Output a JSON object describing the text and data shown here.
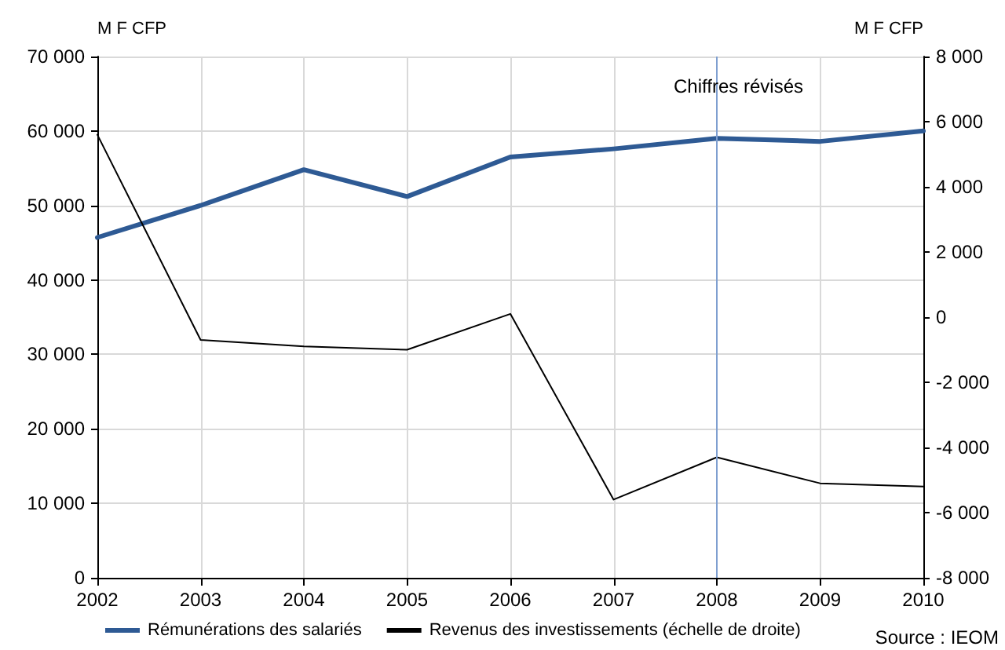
{
  "chart_data": {
    "type": "line",
    "ylabel": "M F CFP",
    "y2label": "M F CFP",
    "x": [
      2002,
      2003,
      2004,
      2005,
      2006,
      2007,
      2008,
      2009,
      2010
    ],
    "series": [
      {
        "name": "Rémunérations des salariés",
        "color": "#2e5a94",
        "values": [
          45700,
          50000,
          54800,
          51200,
          56500,
          57600,
          59000,
          58600,
          60000
        ]
      },
      {
        "name": "Revenus des investissements (échelle de droite)",
        "color": "#000000",
        "axis": "y2",
        "values": [
          5600,
          -700,
          -900,
          -1000,
          100,
          -5600,
          -4300,
          -5100,
          -5200
        ]
      }
    ],
    "xlim": [
      2002,
      2010
    ],
    "xticks": [
      2002,
      2003,
      2004,
      2005,
      2006,
      2007,
      2008,
      2009,
      2010
    ],
    "ylim": [
      0,
      70000
    ],
    "yticks": [
      0,
      10000,
      20000,
      30000,
      40000,
      50000,
      60000,
      70000
    ],
    "y2lim": [
      -8000,
      8000
    ],
    "y2ticks": [
      -8000,
      -6000,
      -4000,
      -2000,
      0,
      2000,
      4000,
      6000,
      8000
    ],
    "ref_lines": [
      {
        "axis": "x",
        "value": 2008,
        "label": "Chiffres révisés",
        "color": "#7f9fd0"
      }
    ],
    "annotations": [
      "Source : IEOM"
    ],
    "grid": true,
    "legend": "bottom",
    "marker": "none"
  }
}
